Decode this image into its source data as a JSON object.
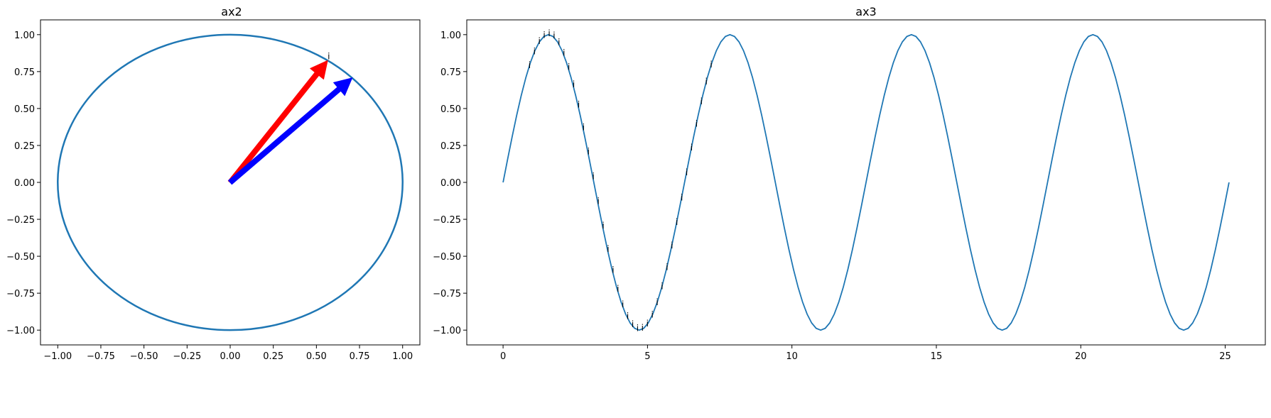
{
  "chart_data": [
    {
      "panel": "left",
      "type": "line",
      "title": "ax2",
      "xlabel": "",
      "ylabel": "",
      "xlim": [
        -1.1,
        1.1
      ],
      "ylim": [
        -1.1,
        1.1
      ],
      "aspect": "equal",
      "grid": false,
      "xticks": [
        -1.0,
        -0.75,
        -0.5,
        -0.25,
        0.0,
        0.25,
        0.5,
        0.75,
        1.0
      ],
      "xtick_labels": [
        "−1.00",
        "−0.75",
        "−0.50",
        "−0.25",
        "0.00",
        "0.25",
        "0.50",
        "0.75",
        "1.00"
      ],
      "yticks": [
        1.0,
        0.75,
        0.5,
        0.25,
        0.0,
        -0.25,
        -0.5,
        -0.75,
        -1.0
      ],
      "ytick_labels": [
        "1.00",
        "0.75",
        "0.50",
        "0.25",
        "0.00",
        "−0.25",
        "−0.50",
        "−0.75",
        "−1.00"
      ],
      "series": [
        {
          "shape": "circle",
          "center": [
            0,
            0
          ],
          "radius": 1,
          "color": "#1f77b4"
        }
      ],
      "arrows": [
        {
          "from": [
            0,
            0
          ],
          "to": [
            0.565,
            0.825
          ],
          "color": "#ff0000"
        },
        {
          "from": [
            0,
            0
          ],
          "to": [
            0.707,
            0.707
          ],
          "color": "#0000ff"
        }
      ],
      "annotations": [
        {
          "text": "i",
          "x": 0.565,
          "y": 0.825
        }
      ]
    },
    {
      "panel": "right",
      "type": "line",
      "title": "ax3",
      "xlabel": "",
      "ylabel": "",
      "xlim": [
        -1.257,
        26.389
      ],
      "ylim": [
        -1.1,
        1.1
      ],
      "grid": false,
      "xticks": [
        0,
        5,
        10,
        15,
        20,
        25
      ],
      "xtick_labels": [
        "0",
        "5",
        "10",
        "15",
        "20",
        "25"
      ],
      "yticks": [
        1.0,
        0.75,
        0.5,
        0.25,
        0.0,
        -0.25,
        -0.5,
        -0.75,
        -1.0
      ],
      "ytick_labels": [
        "1.00",
        "0.75",
        "0.50",
        "0.25",
        "0.00",
        "−0.25",
        "−0.50",
        "−0.75",
        "−1.00"
      ],
      "series": [
        {
          "function": "sin(x)",
          "x_range": [
            0,
            25.1327
          ],
          "n_points": 161,
          "color": "#1f77b4"
        }
      ],
      "point_annotations": {
        "text": "i",
        "x": [
          0.9,
          1.07,
          1.24,
          1.41,
          1.58,
          1.75,
          1.92,
          2.09,
          2.26,
          2.43,
          2.6,
          2.77,
          2.94,
          3.11,
          3.28,
          3.45,
          3.62,
          3.79,
          3.96,
          4.13,
          4.3,
          4.47,
          4.64,
          4.81,
          4.98,
          5.15,
          5.32,
          5.49,
          5.66,
          5.83,
          6.0,
          6.17,
          6.34,
          6.51,
          6.68,
          6.85,
          7.02,
          7.19
        ]
      }
    }
  ]
}
